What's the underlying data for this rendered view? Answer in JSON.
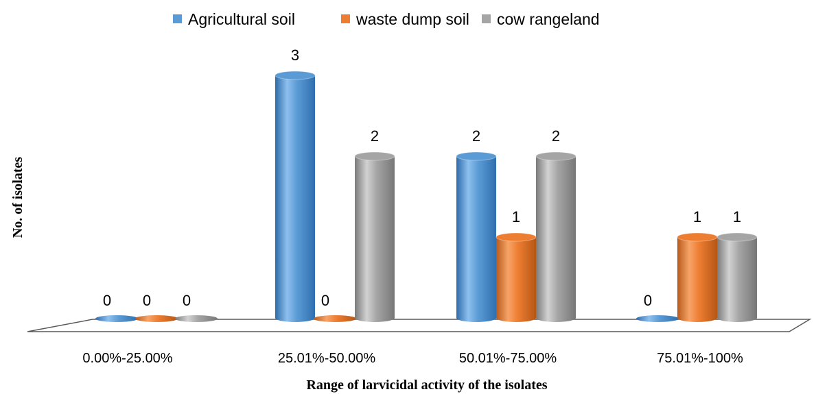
{
  "chart_data": {
    "type": "bar",
    "xlabel": "Range of larvicidal activity of the isolates",
    "ylabel": "No. of isolates",
    "categories": [
      "0.00%-25.00%",
      "25.01%-50.00%",
      "50.01%-75.00%",
      "75.01%-100%"
    ],
    "series": [
      {
        "name": "Agricultural soil",
        "color": "#5B9BD5",
        "values": [
          0,
          3,
          2,
          0
        ]
      },
      {
        "name": "waste dump soil",
        "color": "#ED7D31",
        "values": [
          0,
          0,
          1,
          1
        ]
      },
      {
        "name": "cow rangeland",
        "color": "#A5A5A5",
        "values": [
          0,
          2,
          2,
          1
        ]
      }
    ],
    "ylim": [
      0,
      3
    ],
    "grid": false,
    "legend_position": "top",
    "style": "3d-cylinder"
  }
}
